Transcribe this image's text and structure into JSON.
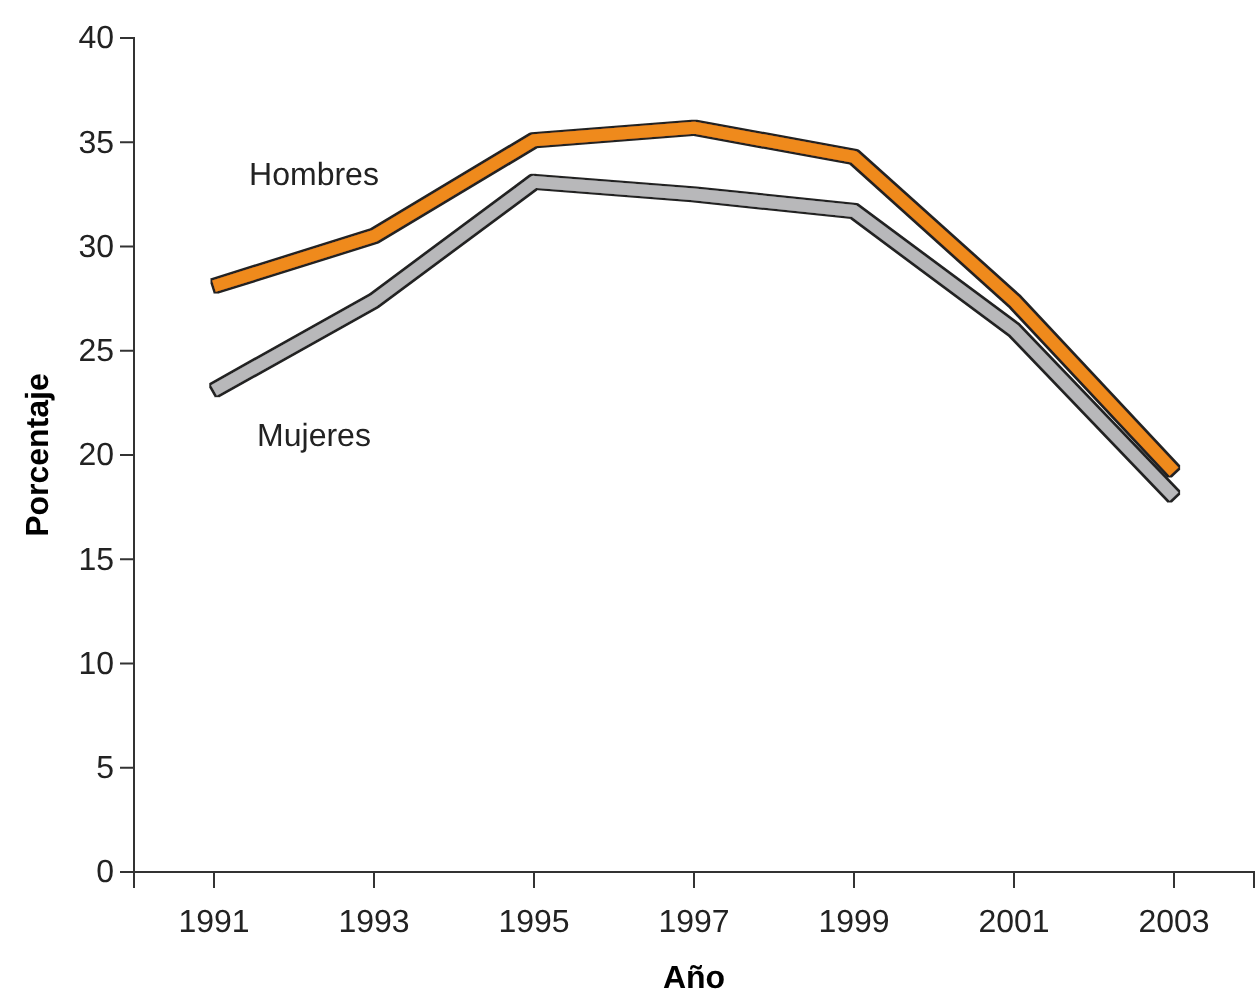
{
  "chart_data": {
    "type": "line",
    "xlabel": "Año",
    "ylabel": "Porcentaje",
    "x": [
      1991,
      1993,
      1995,
      1997,
      1999,
      2001,
      2003
    ],
    "xlim": [
      1990,
      2004
    ],
    "xticks": [
      1991,
      1993,
      1995,
      1997,
      1999,
      2001,
      2003
    ],
    "ylim": [
      0,
      40
    ],
    "yticks": [
      0,
      5,
      10,
      15,
      20,
      25,
      30,
      35,
      40
    ],
    "series": [
      {
        "name": "Hombres",
        "color": "#ef8a1e",
        "values": [
          28.1,
          30.5,
          35.1,
          35.7,
          34.3,
          27.4,
          19.2
        ]
      },
      {
        "name": "Mujeres",
        "color": "#b8b8ba",
        "values": [
          23.1,
          27.4,
          33.1,
          32.5,
          31.7,
          26.0,
          18.0
        ]
      }
    ],
    "legend": false,
    "grid": false,
    "marker": "none",
    "line_style": "solid"
  }
}
